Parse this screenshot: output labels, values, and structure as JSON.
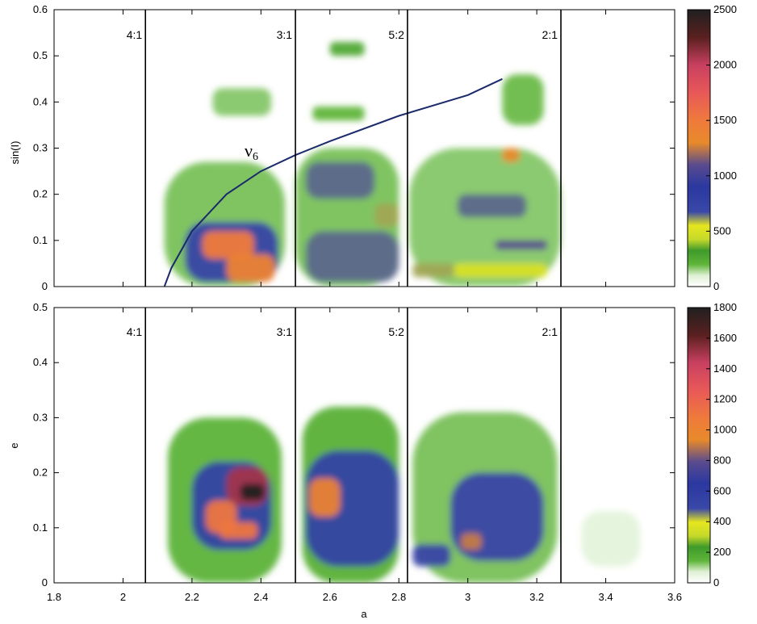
{
  "chart_data": [
    {
      "type": "heatmap",
      "panel": "top",
      "xlabel": "",
      "ylabel": "sin(I)",
      "xlim": [
        1.8,
        3.6
      ],
      "ylim": [
        0,
        0.6
      ],
      "yticks": [
        "0",
        "0.1",
        "0.2",
        "0.3",
        "0.4",
        "0.5",
        "0.6"
      ],
      "yticks_values": [
        0,
        0.1,
        0.2,
        0.3,
        0.4,
        0.5,
        0.6
      ],
      "colorbar": {
        "min": 0,
        "max": 2500,
        "ticks": [
          "0",
          "500",
          "1000",
          "1500",
          "2000",
          "2500"
        ],
        "tick_values": [
          0,
          500,
          1000,
          1500,
          2000,
          2500
        ]
      },
      "resonances": [
        {
          "label": "4:1",
          "a": 2.065
        },
        {
          "label": "3:1",
          "a": 2.5
        },
        {
          "label": "5:2",
          "a": 2.825
        },
        {
          "label": "2:1",
          "a": 3.27
        }
      ],
      "annotation": {
        "text": "ν",
        "sub": "6"
      },
      "nu6_curve": [
        [
          2.12,
          0.0
        ],
        [
          2.14,
          0.04
        ],
        [
          2.2,
          0.12
        ],
        [
          2.3,
          0.2
        ],
        [
          2.4,
          0.25
        ],
        [
          2.5,
          0.285
        ],
        [
          2.6,
          0.315
        ],
        [
          2.8,
          0.37
        ],
        [
          3.0,
          0.415
        ],
        [
          3.1,
          0.45
        ]
      ],
      "density_blobs": [
        {
          "a": [
            2.12,
            2.47
          ],
          "v": [
            0.0,
            0.27
          ],
          "level": 180
        },
        {
          "a": [
            2.5,
            2.8
          ],
          "v": [
            0.0,
            0.3
          ],
          "level": 180
        },
        {
          "a": [
            2.83,
            3.27
          ],
          "v": [
            0.0,
            0.3
          ],
          "level": 170
        },
        {
          "a": [
            2.26,
            2.43
          ],
          "v": [
            0.37,
            0.43
          ],
          "level": 170
        },
        {
          "a": [
            2.55,
            2.7
          ],
          "v": [
            0.36,
            0.39
          ],
          "level": 200
        },
        {
          "a": [
            2.6,
            2.7
          ],
          "v": [
            0.5,
            0.53
          ],
          "level": 260
        },
        {
          "a": [
            3.1,
            3.22
          ],
          "v": [
            0.35,
            0.46
          ],
          "level": 190
        },
        {
          "a": [
            2.18,
            2.45
          ],
          "v": [
            0.01,
            0.14
          ],
          "level": 700
        },
        {
          "a": [
            2.23,
            2.38
          ],
          "v": [
            0.06,
            0.12
          ],
          "level": 1500
        },
        {
          "a": [
            2.3,
            2.44
          ],
          "v": [
            0.01,
            0.07
          ],
          "level": 1400
        },
        {
          "a": [
            2.53,
            2.73
          ],
          "v": [
            0.19,
            0.27
          ],
          "level": 650
        },
        {
          "a": [
            2.53,
            2.8
          ],
          "v": [
            0.01,
            0.12
          ],
          "level": 650
        },
        {
          "a": [
            2.73,
            2.8
          ],
          "v": [
            0.13,
            0.18
          ],
          "level": 600
        },
        {
          "a": [
            2.84,
            2.96
          ],
          "v": [
            0.02,
            0.05
          ],
          "level": 600
        },
        {
          "a": [
            2.96,
            3.23
          ],
          "v": [
            0.02,
            0.05
          ],
          "level": 500
        },
        {
          "a": [
            2.97,
            3.17
          ],
          "v": [
            0.15,
            0.2
          ],
          "level": 650
        },
        {
          "a": [
            3.08,
            3.23
          ],
          "v": [
            0.08,
            0.1
          ],
          "level": 1100
        },
        {
          "a": [
            3.1,
            3.15
          ],
          "v": [
            0.27,
            0.3
          ],
          "level": 1300
        }
      ]
    },
    {
      "type": "heatmap",
      "panel": "bottom",
      "xlabel": "a",
      "ylabel": "e",
      "xlim": [
        1.8,
        3.6
      ],
      "ylim": [
        0,
        0.5
      ],
      "xticks": [
        "1.8",
        "2",
        "2.2",
        "2.4",
        "2.6",
        "2.8",
        "3",
        "3.2",
        "3.4",
        "3.6"
      ],
      "xticks_values": [
        1.8,
        2.0,
        2.2,
        2.4,
        2.6,
        2.8,
        3.0,
        3.2,
        3.4,
        3.6
      ],
      "yticks": [
        "0",
        "0.1",
        "0.2",
        "0.3",
        "0.4",
        "0.5"
      ],
      "yticks_values": [
        0,
        0.1,
        0.2,
        0.3,
        0.4,
        0.5
      ],
      "colorbar": {
        "min": 0,
        "max": 1800,
        "ticks": [
          "0",
          "200",
          "400",
          "600",
          "800",
          "1000",
          "1200",
          "1400",
          "1600",
          "1800"
        ],
        "tick_values": [
          0,
          200,
          400,
          600,
          800,
          1000,
          1200,
          1400,
          1600,
          1800
        ]
      },
      "resonances": [
        {
          "label": "4:1",
          "a": 2.065
        },
        {
          "label": "3:1",
          "a": 2.5
        },
        {
          "label": "5:2",
          "a": 2.825
        },
        {
          "label": "2:1",
          "a": 3.27
        }
      ],
      "density_blobs": [
        {
          "a": [
            2.13,
            2.46
          ],
          "v": [
            0.0,
            0.3
          ],
          "level": 150
        },
        {
          "a": [
            2.52,
            2.8
          ],
          "v": [
            0.0,
            0.32
          ],
          "level": 160
        },
        {
          "a": [
            2.84,
            3.26
          ],
          "v": [
            0.0,
            0.31
          ],
          "level": 130
        },
        {
          "a": [
            3.33,
            3.5
          ],
          "v": [
            0.03,
            0.13
          ],
          "level": 60
        },
        {
          "a": [
            2.2,
            2.43
          ],
          "v": [
            0.06,
            0.22
          ],
          "level": 550
        },
        {
          "a": [
            2.3,
            2.42
          ],
          "v": [
            0.14,
            0.21
          ],
          "level": 1500
        },
        {
          "a": [
            2.34,
            2.41
          ],
          "v": [
            0.15,
            0.18
          ],
          "level": 1800
        },
        {
          "a": [
            2.24,
            2.33
          ],
          "v": [
            0.09,
            0.15
          ],
          "level": 1100
        },
        {
          "a": [
            2.28,
            2.39
          ],
          "v": [
            0.08,
            0.11
          ],
          "level": 1100
        },
        {
          "a": [
            2.53,
            2.8
          ],
          "v": [
            0.03,
            0.24
          ],
          "level": 550
        },
        {
          "a": [
            2.54,
            2.63
          ],
          "v": [
            0.12,
            0.19
          ],
          "level": 1000
        },
        {
          "a": [
            2.84,
            2.95
          ],
          "v": [
            0.03,
            0.07
          ],
          "level": 500
        },
        {
          "a": [
            2.95,
            3.22
          ],
          "v": [
            0.04,
            0.2
          ],
          "level": 500
        },
        {
          "a": [
            2.98,
            3.04
          ],
          "v": [
            0.06,
            0.09
          ],
          "level": 900
        }
      ]
    }
  ]
}
